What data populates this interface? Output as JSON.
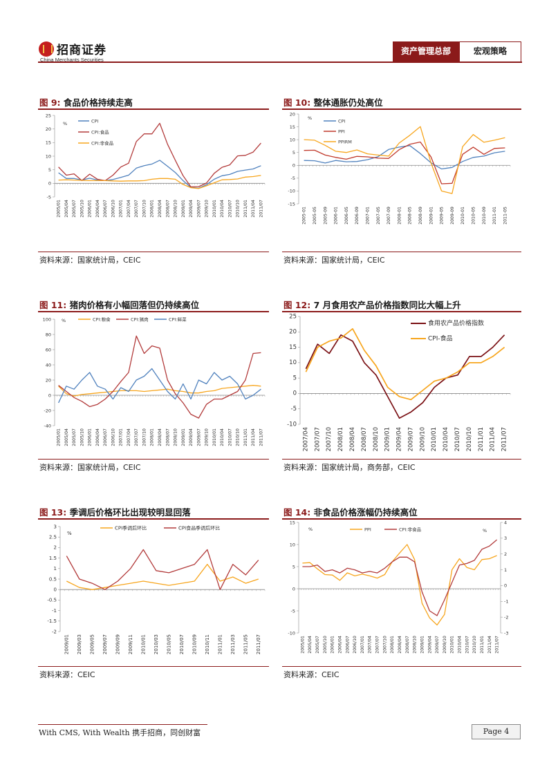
{
  "header": {
    "logo_name": "招商证券",
    "logo_en": "China Merchants Securities",
    "tab1": "资产管理总部",
    "tab2": "宏观策略"
  },
  "footer": {
    "slogan": "With CMS, With Wealth  携手招商，同创财富",
    "page": "Page 4"
  },
  "figures": [
    {
      "num": "图 9:",
      "title": "食品价格持续走高",
      "source": "资料来源：国家统计局，CEIC"
    },
    {
      "num": "图 10:",
      "title": "整体通胀仍处高位",
      "source": "资料来源：国家统计局，CEIC"
    },
    {
      "num": "图 11:",
      "title": "猪肉价格有小幅回落但仍持续高位",
      "source": "资料来源：国家统计局，CEIC"
    },
    {
      "num": "图 12:",
      "title": "7 月食用农产品价格指数同比大幅上升",
      "source": "资料来源：国家统计局，商务部，CEIC"
    },
    {
      "num": "图 13:",
      "title": "季调后价格环比出现较明显回落",
      "source": "资料来源：CEIC"
    },
    {
      "num": "图 14:",
      "title": "非食品价格涨幅仍持续高位",
      "source": "资料来源：CEIC"
    }
  ],
  "colors": {
    "blue": "#4f81bd",
    "red": "#b23a3a",
    "orange": "#f7a51c",
    "darkred": "#7a1014",
    "brand": "#8b1a1a"
  },
  "chart_data": [
    {
      "type": "line",
      "unit_label": "%",
      "x": [
        "2005/01",
        "2005/04",
        "2005/07",
        "2005/10",
        "2006/01",
        "2006/04",
        "2006/07",
        "2006/10",
        "2007/01",
        "2007/04",
        "2007/07",
        "2007/10",
        "2008/01",
        "2008/04",
        "2008/07",
        "2008/10",
        "2009/01",
        "2009/04",
        "2009/07",
        "2009/10",
        "2010/01",
        "2010/04",
        "2010/07",
        "2010/10",
        "2011/01",
        "2011/04",
        "2011/07"
      ],
      "ylim": [
        -5,
        25
      ],
      "yticks": [
        -5,
        0,
        5,
        10,
        15,
        20,
        25
      ],
      "series": [
        {
          "name": "CPI",
          "color": "#4f81bd",
          "values": [
            3.9,
            1.8,
            1.8,
            1.2,
            1.9,
            1.2,
            1.0,
            1.4,
            2.2,
            3.0,
            5.6,
            6.5,
            7.1,
            8.5,
            6.3,
            4.0,
            1.0,
            -1.5,
            -1.8,
            -0.5,
            1.5,
            2.8,
            3.3,
            4.4,
            4.9,
            5.3,
            6.5
          ]
        },
        {
          "name": "CPI:食品",
          "color": "#b23a3a",
          "values": [
            6.0,
            3.0,
            3.5,
            1.0,
            3.4,
            1.5,
            1.0,
            3.0,
            6.0,
            7.4,
            15.4,
            18.2,
            18.2,
            22.1,
            14.4,
            8.5,
            2.8,
            -1.3,
            -1.2,
            0.1,
            3.7,
            5.9,
            6.8,
            10.1,
            10.3,
            11.5,
            14.8
          ]
        },
        {
          "name": "CPI:非食品",
          "color": "#f7a51c",
          "values": [
            1.2,
            1.3,
            1.2,
            1.1,
            1.0,
            1.0,
            1.0,
            0.9,
            0.8,
            0.9,
            0.9,
            1.0,
            1.5,
            1.8,
            1.8,
            1.5,
            -0.4,
            -1.6,
            -1.9,
            -0.9,
            0.2,
            1.3,
            1.4,
            1.6,
            2.3,
            2.5,
            2.9
          ]
        }
      ]
    },
    {
      "type": "line",
      "unit_label": "%",
      "x": [
        "2005-01",
        "2005-05",
        "2005-09",
        "2006-01",
        "2006-05",
        "2006-09",
        "2007-01",
        "2007-05",
        "2007-09",
        "2008-01",
        "2008-05",
        "2008-09",
        "2009-01",
        "2009-05",
        "2009-09",
        "2010-01",
        "2010-05",
        "2010-09",
        "2011-01",
        "2011-05"
      ],
      "ylim": [
        -15,
        20
      ],
      "yticks": [
        -15,
        -10,
        -5,
        0,
        5,
        10,
        15,
        20
      ],
      "series": [
        {
          "name": "CPI",
          "color": "#4f81bd",
          "values": [
            1.9,
            1.8,
            0.9,
            1.9,
            1.4,
            1.5,
            2.2,
            3.4,
            6.2,
            7.1,
            7.7,
            4.6,
            1.0,
            -1.4,
            -0.8,
            1.5,
            3.1,
            3.6,
            4.9,
            5.5
          ]
        },
        {
          "name": "PPI",
          "color": "#c0392b",
          "values": [
            5.8,
            5.9,
            4.0,
            3.1,
            2.4,
            3.5,
            3.3,
            2.8,
            2.7,
            6.1,
            8.2,
            9.1,
            3.3,
            -7.2,
            -7.0,
            4.3,
            7.1,
            4.3,
            6.6,
            6.8
          ]
        },
        {
          "name": "PPIRM",
          "color": "#f7a51c",
          "values": [
            10.0,
            9.8,
            7.8,
            5.5,
            5.0,
            6.0,
            4.5,
            4.0,
            3.6,
            8.7,
            11.7,
            15.1,
            1.0,
            -10.0,
            -11.0,
            7.3,
            12.0,
            9.0,
            9.8,
            10.8
          ]
        }
      ]
    },
    {
      "type": "line",
      "unit_label": "%",
      "x": [
        "2005/01",
        "2005/04",
        "2005/07",
        "2005/10",
        "2006/01",
        "2006/04",
        "2006/07",
        "2006/10",
        "2007/01",
        "2007/04",
        "2007/07",
        "2007/10",
        "2008/01",
        "2008/04",
        "2008/07",
        "2008/10",
        "2009/01",
        "2009/04",
        "2009/07",
        "2009/10",
        "2010/01",
        "2010/04",
        "2010/07",
        "2010/10",
        "2011/01",
        "2011/04",
        "2011/07"
      ],
      "ylim": [
        -40,
        100
      ],
      "yticks": [
        -40,
        -20,
        0,
        20,
        40,
        60,
        80,
        100
      ],
      "series": [
        {
          "name": "CPI:粮食",
          "color": "#f7a51c",
          "values": [
            12,
            2,
            -1,
            1,
            2,
            3,
            4,
            5,
            6,
            6,
            6,
            5,
            6,
            7,
            8,
            6,
            5,
            3,
            3,
            5,
            6,
            9,
            10,
            11,
            12,
            13,
            12
          ]
        },
        {
          "name": "CPI:猪肉",
          "color": "#b23a3a",
          "values": [
            13,
            5,
            -3,
            -8,
            -15,
            -12,
            -5,
            5,
            18,
            30,
            78,
            55,
            65,
            62,
            20,
            2,
            -10,
            -25,
            -30,
            -12,
            -5,
            -5,
            0,
            5,
            20,
            55,
            56
          ]
        },
        {
          "name": "CPI:鲜菜",
          "color": "#4f81bd",
          "values": [
            -10,
            12,
            8,
            20,
            30,
            12,
            8,
            -5,
            10,
            5,
            20,
            25,
            35,
            20,
            5,
            -5,
            15,
            -5,
            20,
            15,
            30,
            20,
            25,
            15,
            -5,
            0,
            8
          ]
        }
      ]
    },
    {
      "type": "line",
      "x": [
        "2007/04",
        "2007/07",
        "2007/10",
        "2008/01",
        "2008/04",
        "2008/07",
        "2008/10",
        "2009/01",
        "2009/04",
        "2009/07",
        "2009/10",
        "2010/01",
        "2010/04",
        "2010/07",
        "2010/10",
        "2011/01",
        "2011/04",
        "2011/07"
      ],
      "ylim": [
        -10,
        25
      ],
      "yticks": [
        -10,
        -5,
        0,
        5,
        10,
        15,
        20,
        25
      ],
      "series": [
        {
          "name": "食用农产品价格指数",
          "color": "#7a1014",
          "values": [
            8,
            16,
            13,
            19,
            17,
            10,
            6,
            -1,
            -8,
            -6,
            -3,
            2,
            5,
            6,
            12,
            12,
            15,
            19
          ]
        },
        {
          "name": "CPI-食品",
          "color": "#f7a51c",
          "values": [
            7,
            15,
            17,
            18,
            21,
            14,
            9,
            2,
            -1,
            -2,
            1,
            4,
            5,
            7,
            10,
            10,
            12,
            15
          ]
        }
      ]
    },
    {
      "type": "line",
      "unit_label": "%",
      "x": [
        "2009/01",
        "2009/03",
        "2009/05",
        "2009/07",
        "2009/09",
        "2009/11",
        "2010/01",
        "2010/03",
        "2010/05",
        "2010/07",
        "2010/09",
        "2010/11",
        "2011/01",
        "2011/03",
        "2011/05",
        "2011/07"
      ],
      "ylim": [
        -2,
        3
      ],
      "yticks": [
        -2,
        -1.5,
        -1,
        -0.5,
        0,
        0.5,
        1,
        1.5,
        2,
        2.5,
        3
      ],
      "series": [
        {
          "name": "CPI季调后环比",
          "color": "#f7a51c",
          "values": [
            0.4,
            0.1,
            0.0,
            0.1,
            0.2,
            0.3,
            0.4,
            0.3,
            0.2,
            0.3,
            0.4,
            1.2,
            0.4,
            0.6,
            0.3,
            0.5
          ]
        },
        {
          "name": "CPI食品季调后环比",
          "color": "#b23a3a",
          "values": [
            1.6,
            0.5,
            0.3,
            0.0,
            0.4,
            1.0,
            1.9,
            0.9,
            0.8,
            1.0,
            1.2,
            1.9,
            0.0,
            1.2,
            0.7,
            1.4
          ]
        }
      ]
    },
    {
      "type": "line",
      "unit_label": "%",
      "x": [
        "2005/01",
        "2005/04",
        "2005/07",
        "2005/10",
        "2006/01",
        "2006/04",
        "2006/07",
        "2006/10",
        "2007/01",
        "2007/04",
        "2007/07",
        "2007/10",
        "2008/01",
        "2008/04",
        "2008/07",
        "2008/10",
        "2009/01",
        "2009/04",
        "2009/07",
        "2009/10",
        "2010/01",
        "2010/04",
        "2010/07",
        "2010/10",
        "2011/01",
        "2011/04",
        "2011/07"
      ],
      "ylim": [
        -10,
        15
      ],
      "yticks": [
        -10,
        -5,
        0,
        5,
        10,
        15
      ],
      "y2lim": [
        -3,
        4
      ],
      "y2ticks": [
        -3,
        -2,
        -1,
        0,
        1,
        2,
        3,
        4
      ],
      "series": [
        {
          "name": "PPI",
          "color": "#f7a51c",
          "axis": "left",
          "values": [
            5.8,
            5.9,
            4.5,
            3.2,
            3.1,
            1.9,
            3.6,
            2.9,
            3.3,
            2.9,
            2.4,
            3.2,
            6.1,
            8.1,
            10.0,
            6.6,
            -3.3,
            -6.6,
            -8.2,
            -5.8,
            4.3,
            6.8,
            4.8,
            4.3,
            6.6,
            6.8,
            7.5
          ]
        },
        {
          "name": "CPI:非食品",
          "color": "#b23a3a",
          "axis": "right",
          "values": [
            1.2,
            1.2,
            1.3,
            0.9,
            1.0,
            0.8,
            1.1,
            1.0,
            0.8,
            0.9,
            0.8,
            1.1,
            1.5,
            1.8,
            1.8,
            1.5,
            -0.4,
            -1.6,
            -1.9,
            -0.9,
            0.2,
            1.3,
            1.4,
            1.6,
            2.3,
            2.5,
            2.9
          ]
        }
      ]
    }
  ]
}
